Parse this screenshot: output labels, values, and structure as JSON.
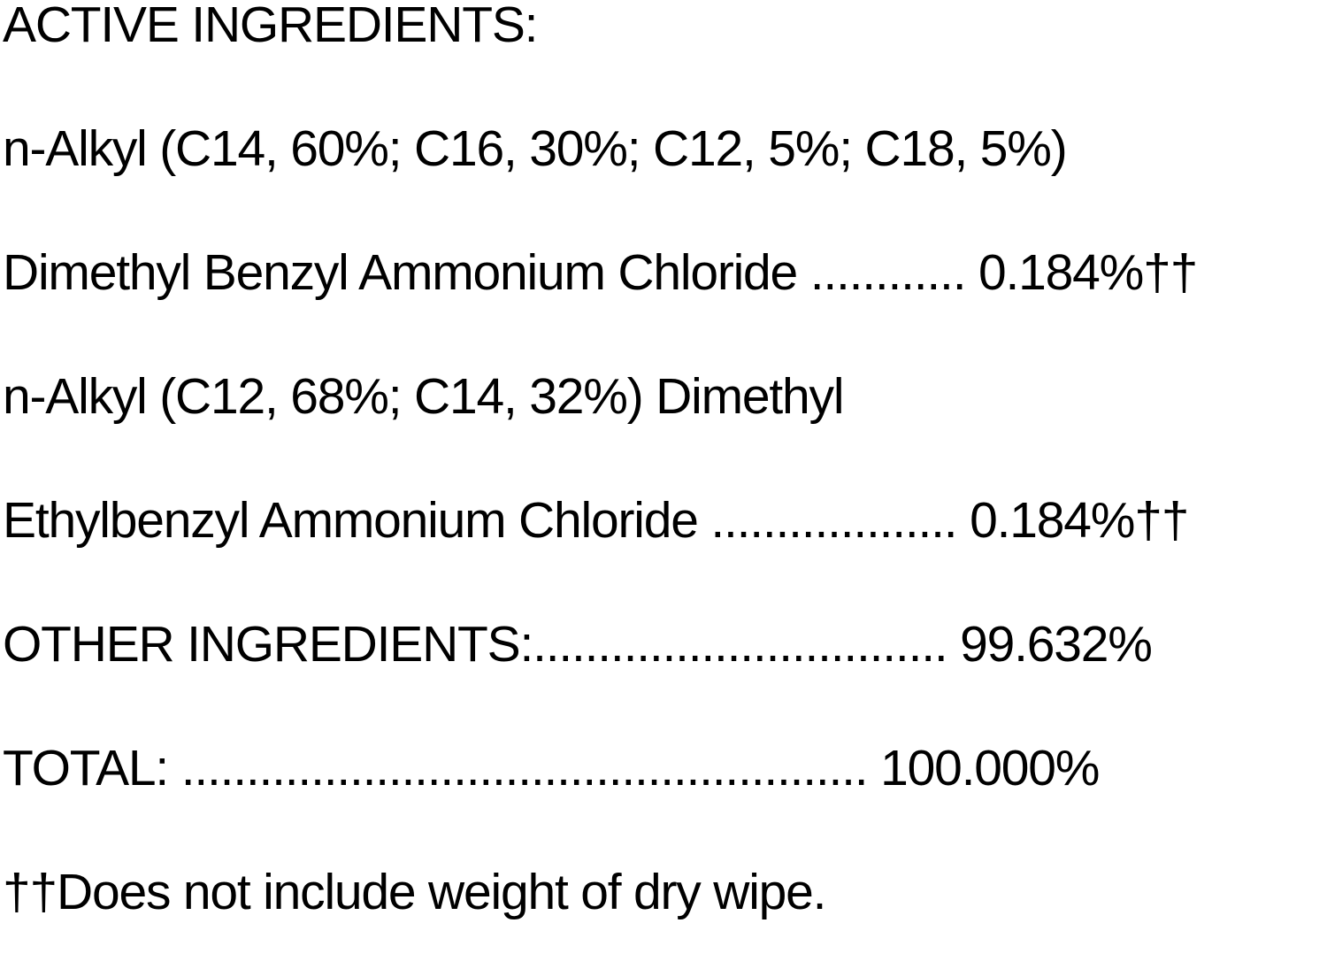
{
  "heading": "ACTIVE INGREDIENTS:",
  "lines": [
    "n-Alkyl (C14, 60%; C16, 30%; C12, 5%; C18, 5%)",
    "Dimethyl Benzyl Ammonium Chloride ............ 0.184%††",
    "n-Alkyl (C12, 68%; C14, 32%) Dimethyl",
    "Ethylbenzyl Ammonium Chloride ................... 0.184%††",
    "OTHER INGREDIENTS:................................ 99.632%",
    "TOTAL: ..................................................... 100.000%",
    "††Does not include weight of dry wipe."
  ]
}
